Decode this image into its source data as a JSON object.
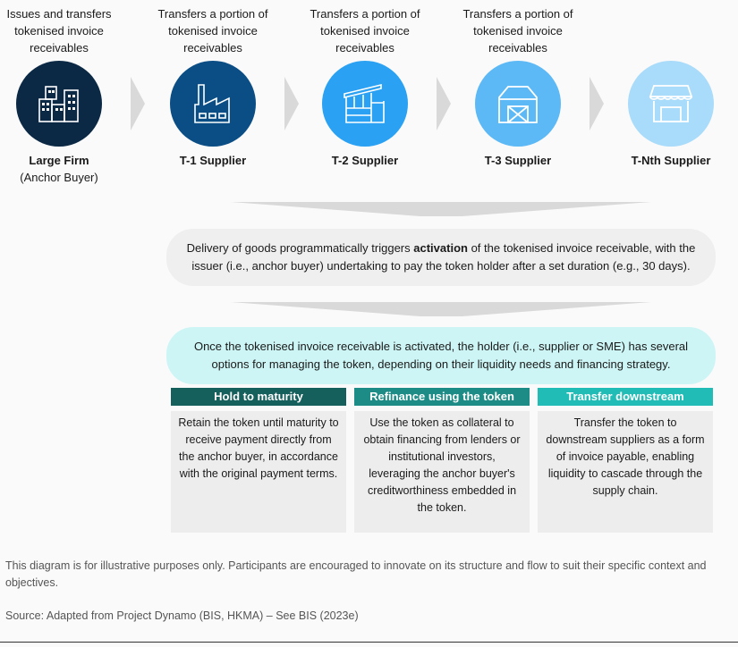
{
  "flow": [
    {
      "caption": "Issues and transfers tokenised invoice receivables",
      "name": "Large Firm",
      "sub": "(Anchor Buyer)",
      "icon": "office-buildings-icon",
      "color": "#0b2945"
    },
    {
      "caption": "Transfers a portion of tokenised invoice receivables",
      "name": "T-1 Supplier",
      "icon": "factory-icon",
      "color": "#0b4e85"
    },
    {
      "caption": "Transfers a portion of tokenised invoice receivables",
      "name": "T-2 Supplier",
      "icon": "warehouse-icon",
      "color": "#2aa1f2"
    },
    {
      "caption": "Transfers a portion of tokenised invoice receivables",
      "name": "T-3 Supplier",
      "icon": "barn-icon",
      "color": "#5cb9f6"
    },
    {
      "name": "T-Nth Supplier",
      "icon": "shop-icon",
      "color": "#a9dbfa"
    }
  ],
  "activation": {
    "pre": "Delivery of goods programmatically triggers ",
    "bold": "activation",
    "post": " of the tokenised invoice receivable, with the issuer (i.e., anchor buyer) undertaking to pay the token holder after a set duration (e.g., 30 days)."
  },
  "options_intro": "Once the tokenised invoice receivable is activated, the holder (i.e., supplier or SME) has several options for managing the token, depending on their liquidity needs and financing strategy.",
  "options": [
    {
      "title": "Hold to maturity",
      "text": "Retain the token until maturity to receive payment directly from the anchor buyer, in accordance with the original payment terms.",
      "color": "#155f5c"
    },
    {
      "title": "Refinance using the token",
      "text": "Use the token as collateral to obtain financing from lenders or institutional investors, leveraging the anchor buyer's creditworthiness embedded in the token.",
      "color": "#1e8c86"
    },
    {
      "title": "Transfer downstream",
      "text": "Transfer the token to downstream suppliers as a form of invoice payable, enabling liquidity to cascade through the supply chain.",
      "color": "#22bcb7"
    }
  ],
  "note": "This diagram is for illustrative purposes only. Participants are encouraged to innovate on its structure and flow to suit their specific context and objectives.",
  "source": "Source: Adapted from Project Dynamo (BIS, HKMA) – See BIS (2023e)"
}
